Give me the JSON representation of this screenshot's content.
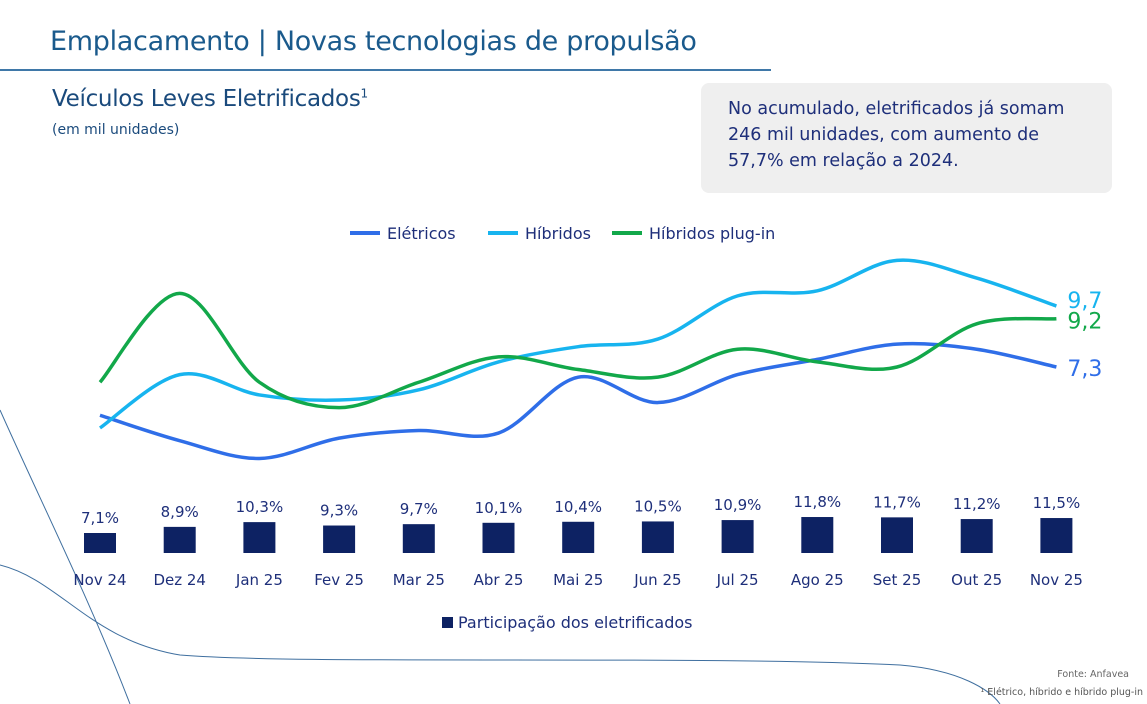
{
  "header": {
    "title": "Emplacamento | Novas tecnologias de propulsão"
  },
  "subtitle": {
    "text": "Veículos Leves Eletrificados",
    "sup": "1",
    "unit": "(em mil unidades)"
  },
  "callout": {
    "text": "No acumulado, eletrificados já somam 246 mil unidades, com aumento de 57,7% em relação a 2024."
  },
  "footer": {
    "source": "Fonte: Anfavea",
    "note": "¹ Elétrico, híbrido e híbrido plug-in"
  },
  "chart_data": {
    "type": "line",
    "categories": [
      "Nov 24",
      "Dez 24",
      "Jan 25",
      "Fev 25",
      "Mar 25",
      "Abr 25",
      "Mai 25",
      "Jun 25",
      "Jul 25",
      "Ago 25",
      "Set 25",
      "Out 25",
      "Nov 25"
    ],
    "series": [
      {
        "name": "Elétricos",
        "color": "#2f6ee8",
        "values": [
          5.4,
          4.4,
          3.7,
          4.5,
          4.8,
          4.7,
          6.9,
          5.9,
          7.0,
          7.6,
          8.2,
          8.0,
          7.3
        ],
        "end_label": "7,3"
      },
      {
        "name": "Híbridos",
        "color": "#17b4ef",
        "values": [
          4.9,
          7.0,
          6.2,
          6.0,
          6.4,
          7.5,
          8.1,
          8.4,
          10.1,
          10.3,
          11.5,
          10.8,
          9.7
        ],
        "end_label": "9,7"
      },
      {
        "name": "Híbridos plug-in",
        "color": "#12a84a",
        "values": [
          6.7,
          10.2,
          6.7,
          5.7,
          6.7,
          7.7,
          7.2,
          6.9,
          8.0,
          7.5,
          7.3,
          9.0,
          9.2
        ],
        "end_label": "9,2"
      }
    ],
    "bar_series": {
      "name": "Participação dos eletrificados",
      "color": "#0d2263",
      "values": [
        7.1,
        8.9,
        10.3,
        9.3,
        9.7,
        10.1,
        10.4,
        10.5,
        10.9,
        11.8,
        11.7,
        11.2,
        11.5
      ],
      "labels": [
        "7,1%",
        "8,9%",
        "10,3%",
        "9,3%",
        "9,7%",
        "10,1%",
        "10,4%",
        "10,5%",
        "10,9%",
        "11,8%",
        "11,7%",
        "11,2%",
        "11,5%"
      ]
    },
    "legend_position": "top",
    "grid": false
  }
}
